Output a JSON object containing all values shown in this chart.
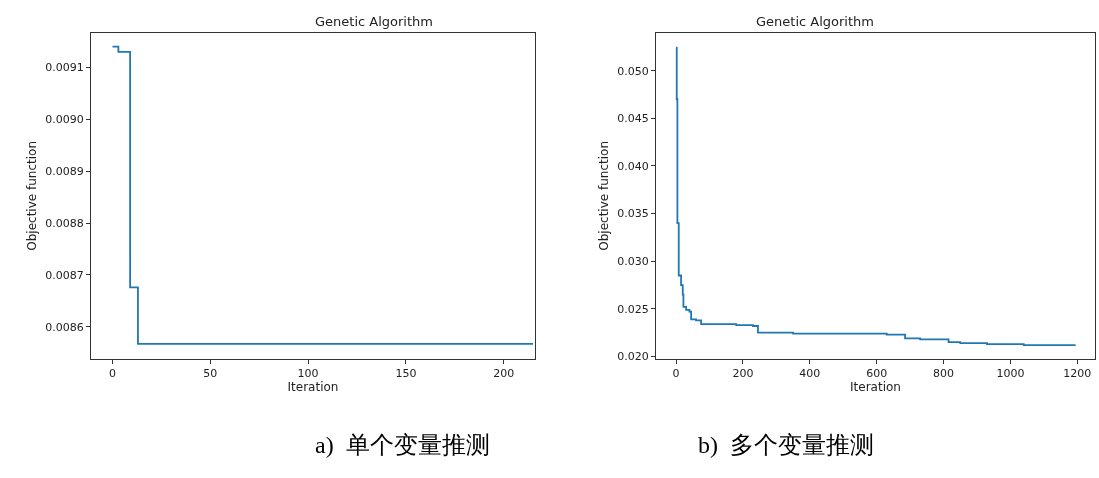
{
  "chart_data": [
    {
      "type": "step",
      "title": "Genetic Algorithm",
      "xlabel": "Iteration",
      "ylabel": "Objective function",
      "color": "#1f77b4",
      "x": [
        0,
        2,
        3,
        8,
        9,
        11,
        13,
        215
      ],
      "values": [
        0.00914,
        0.00914,
        0.00913,
        0.00913,
        0.008676,
        0.008676,
        0.008567,
        0.008567
      ],
      "xlim": [
        -11,
        216
      ],
      "xticks": [
        0,
        50,
        100,
        150,
        200
      ],
      "ylim": [
        0.008538,
        0.009167
      ],
      "yticks": [
        {
          "value": 0.0086,
          "label": "0.0086"
        },
        {
          "value": 0.0087,
          "label": "0.0087"
        },
        {
          "value": 0.0088,
          "label": "0.0088"
        },
        {
          "value": 0.0089,
          "label": "0.0089"
        },
        {
          "value": 0.009,
          "label": "0.0090"
        },
        {
          "value": 0.0091,
          "label": "0.0091"
        }
      ],
      "annotations": [
        "a)  单个变量推测"
      ]
    },
    {
      "type": "step",
      "title": "Genetic Algorithm",
      "xlabel": "Iteration",
      "ylabel": "Objective function",
      "color": "#1f77b4",
      "x": [
        0,
        2,
        4,
        8,
        15,
        20,
        22,
        30,
        40,
        45,
        60,
        75,
        180,
        230,
        245,
        350,
        630,
        685,
        730,
        815,
        850,
        930,
        1040,
        1195
      ],
      "values": [
        0.0524,
        0.047,
        0.034,
        0.0285,
        0.0275,
        0.0265,
        0.0252,
        0.0249,
        0.0247,
        0.0239,
        0.0238,
        0.0234,
        0.0233,
        0.0232,
        0.0225,
        0.0224,
        0.0223,
        0.0219,
        0.0218,
        0.0215,
        0.0214,
        0.0213,
        0.0212,
        0.0212
      ],
      "xlim": [
        -60,
        1253
      ],
      "xticks": [
        0,
        200,
        400,
        600,
        800,
        1000,
        1200
      ],
      "ylim": [
        0.01974,
        0.05398
      ],
      "yticks": [
        {
          "value": 0.02,
          "label": "0.020"
        },
        {
          "value": 0.025,
          "label": "0.025"
        },
        {
          "value": 0.03,
          "label": "0.030"
        },
        {
          "value": 0.035,
          "label": "0.035"
        },
        {
          "value": 0.04,
          "label": "0.040"
        },
        {
          "value": 0.045,
          "label": "0.045"
        },
        {
          "value": 0.05,
          "label": "0.050"
        }
      ],
      "annotations": [
        "b)  多个变量推测"
      ]
    }
  ]
}
